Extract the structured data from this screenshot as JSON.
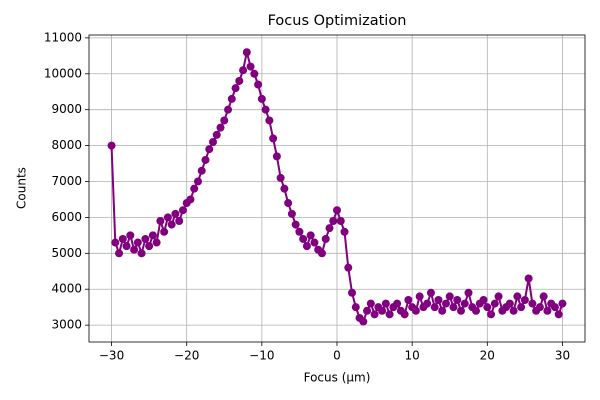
{
  "chart_data": {
    "type": "line",
    "title": "Focus Optimization",
    "x_label": "Focus (μm)",
    "y_label": "Counts",
    "x": [
      -30,
      -29.5,
      -29,
      -28.5,
      -28,
      -27.5,
      -27,
      -26.5,
      -26,
      -25.5,
      -25,
      -24.5,
      -24,
      -23.5,
      -23,
      -22.5,
      -22,
      -21.5,
      -21,
      -20.5,
      -20,
      -19.5,
      -19,
      -18.5,
      -18,
      -17.5,
      -17,
      -16.5,
      -16,
      -15.5,
      -15,
      -14.5,
      -14,
      -13.5,
      -13,
      -12.5,
      -12,
      -11.5,
      -11,
      -10.5,
      -10,
      -9.5,
      -9,
      -8.5,
      -8,
      -7.5,
      -7,
      -6.5,
      -6,
      -5.5,
      -5,
      -4.5,
      -4,
      -3.5,
      -3,
      -2.5,
      -2,
      -1.5,
      -1,
      -0.5,
      0,
      0.5,
      1,
      1.5,
      2,
      2.5,
      3,
      3.5,
      4,
      4.5,
      5,
      5.5,
      6,
      6.5,
      7,
      7.5,
      8,
      8.5,
      9,
      9.5,
      10,
      10.5,
      11,
      11.5,
      12,
      12.5,
      13,
      13.5,
      14,
      14.5,
      15,
      15.5,
      16,
      16.5,
      17,
      17.5,
      18,
      18.5,
      19,
      19.5,
      20,
      20.5,
      21,
      21.5,
      22,
      22.5,
      23,
      23.5,
      24,
      24.5,
      25,
      25.5,
      26,
      26.5,
      27,
      27.5,
      28,
      28.5,
      29,
      29.5,
      30
    ],
    "series": [
      {
        "color": "#800080",
        "values": [
          8000,
          5300,
          5000,
          5400,
          5200,
          5500,
          5100,
          5300,
          5000,
          5400,
          5200,
          5500,
          5300,
          5900,
          5600,
          6000,
          5800,
          6100,
          5900,
          6200,
          6400,
          6500,
          6800,
          7000,
          7300,
          7600,
          7900,
          8100,
          8300,
          8500,
          8700,
          9000,
          9300,
          9600,
          9800,
          10100,
          10600,
          10200,
          10000,
          9700,
          9300,
          9000,
          8700,
          8200,
          7700,
          7100,
          6800,
          6400,
          6100,
          5800,
          5600,
          5400,
          5200,
          5500,
          5300,
          5100,
          5000,
          5400,
          5700,
          5900,
          6200,
          5900,
          5600,
          4600,
          3900,
          3500,
          3200,
          3100,
          3400,
          3600,
          3300,
          3500,
          3400,
          3600,
          3300,
          3500,
          3600,
          3400,
          3300,
          3700,
          3500,
          3400,
          3800,
          3500,
          3600,
          3900,
          3500,
          3700,
          3400,
          3600,
          3800,
          3500,
          3700,
          3400,
          3600,
          3900,
          3500,
          3400,
          3600,
          3700,
          3500,
          3300,
          3600,
          3800,
          3400,
          3500,
          3600,
          3400,
          3800,
          3500,
          3700,
          4300,
          3600,
          3400,
          3500,
          3800,
          3400,
          3600,
          3500,
          3300,
          3600
        ]
      }
    ],
    "xlim": [
      -33,
      33
    ],
    "ylim": [
      2530,
      11080
    ],
    "xticks": [
      {
        "value": -30,
        "label": "−30"
      },
      {
        "value": -20,
        "label": "−20"
      },
      {
        "value": -10,
        "label": "−10"
      },
      0,
      10,
      20,
      30
    ],
    "yticks": [
      3000,
      4000,
      5000,
      6000,
      7000,
      8000,
      9000,
      10000,
      11000
    ],
    "grid": true
  }
}
